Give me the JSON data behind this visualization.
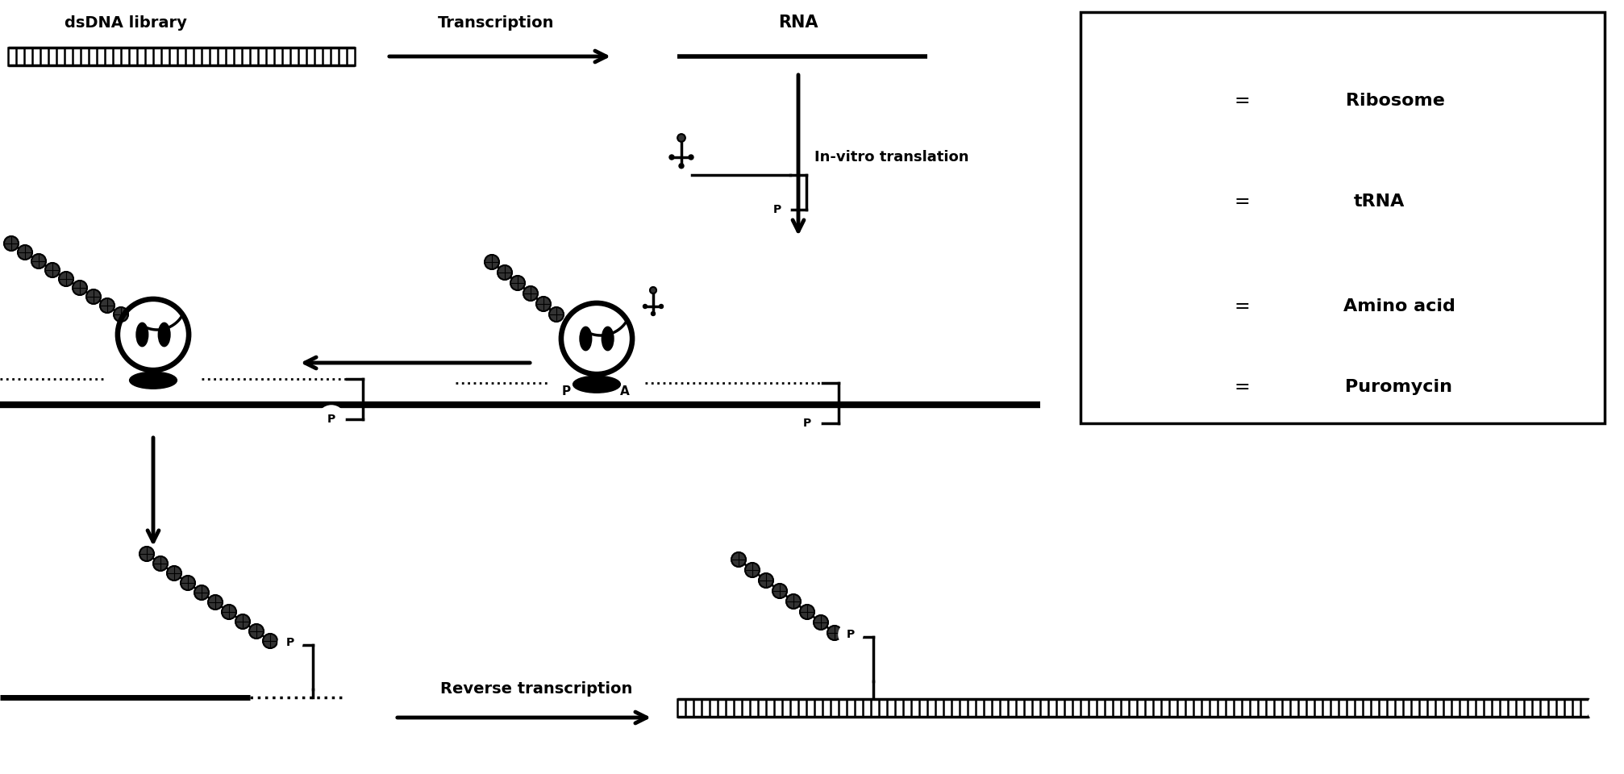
{
  "bg_color": "#ffffff",
  "labels": {
    "dsDNA": "dsDNA library",
    "transcription": "Transcription",
    "RNA": "RNA",
    "in_vitro": "In-vitro translation",
    "reverse": "Reverse transcription"
  },
  "legend": {
    "ribosome": "Ribosome",
    "tRNA": "tRNA",
    "amino_acid": "Amino acid",
    "puromycin": "Puromycin"
  },
  "layout": {
    "fig_w": 20.15,
    "fig_h": 9.6,
    "dpi": 100,
    "xlim": [
      0,
      2015
    ],
    "ylim": [
      0,
      960
    ]
  }
}
